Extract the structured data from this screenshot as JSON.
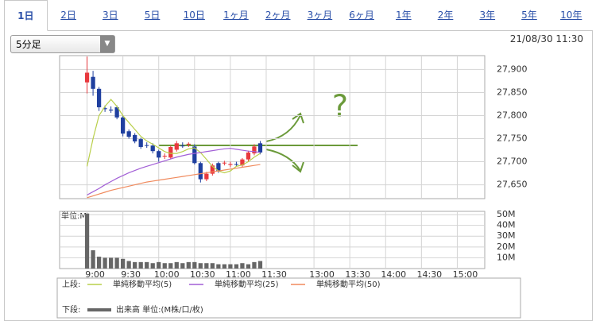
{
  "tabs": [
    "1日",
    "2日",
    "3日",
    "5日",
    "10日",
    "1ヶ月",
    "2ヶ月",
    "3ヶ月",
    "6ヶ月",
    "1年",
    "2年",
    "3年",
    "5年",
    "10年"
  ],
  "period_select": "5分足",
  "timestamp": "21/08/30 11:30",
  "annotation": "?",
  "legend": {
    "upper_label": "上段:",
    "lower_label": "下段:",
    "lower_entry": "出来高 単位:(M株/口/枚)"
  },
  "chart_data": [
    {
      "type": "candlestick",
      "x": [
        "9:00",
        "9:05",
        "9:10",
        "9:15",
        "9:20",
        "9:25",
        "9:30",
        "9:35",
        "9:40",
        "9:45",
        "9:50",
        "9:55",
        "10:00",
        "10:05",
        "10:10",
        "10:15",
        "10:20",
        "10:25",
        "10:30",
        "10:35",
        "10:40",
        "10:45",
        "10:50",
        "10:55",
        "11:00",
        "11:05",
        "11:10",
        "11:15",
        "11:20",
        "11:25"
      ],
      "open": [
        27872,
        27884,
        27858,
        27816,
        27813,
        27818,
        27796,
        27766,
        27758,
        27749,
        27736,
        27735,
        27723,
        27712,
        27709,
        27726,
        27735,
        27737,
        27733,
        27697,
        27662,
        27674,
        27697,
        27697,
        27693,
        27695,
        27692,
        27705,
        27718,
        27740
      ],
      "high": [
        27928,
        27897,
        27862,
        27822,
        27820,
        27822,
        27800,
        27770,
        27762,
        27752,
        27742,
        27740,
        27726,
        27718,
        27735,
        27745,
        27742,
        27742,
        27738,
        27700,
        27678,
        27696,
        27700,
        27702,
        27700,
        27700,
        27708,
        27724,
        27738,
        27745
      ],
      "low": [
        27848,
        27843,
        27810,
        27808,
        27806,
        27792,
        27755,
        27750,
        27740,
        27728,
        27730,
        27718,
        27700,
        27706,
        27705,
        27722,
        27730,
        27732,
        27694,
        27655,
        27658,
        27670,
        27676,
        27692,
        27688,
        27690,
        27688,
        27700,
        27714,
        27716
      ],
      "close": [
        27893,
        27858,
        27818,
        27814,
        27811,
        27796,
        27761,
        27754,
        27744,
        27732,
        27735,
        27723,
        27709,
        27713,
        27732,
        27740,
        27734,
        27739,
        27697,
        27662,
        27674,
        27692,
        27680,
        27698,
        27695,
        27694,
        27705,
        27720,
        27733,
        27720
      ],
      "up_color": "#e8383d",
      "down_color": "#1f3f9f",
      "series": [
        {
          "name": "単純移動平均(5)",
          "color": "#b9cf4a",
          "values": [
            27690,
            27750,
            27800,
            27820,
            27835,
            27820,
            27800,
            27785,
            27770,
            27755,
            27745,
            27738,
            27730,
            27722,
            27718,
            27718,
            27722,
            27728,
            27730,
            27720,
            27705,
            27690,
            27680,
            27676,
            27680,
            27690,
            27693,
            27700,
            27710,
            27718
          ]
        },
        {
          "name": "単純移動平均(25)",
          "color": "#a25fd6",
          "values": [
            27628,
            27635,
            27642,
            27650,
            27657,
            27664,
            27670,
            27676,
            27681,
            27686,
            27690,
            27694,
            27698,
            27702,
            27706,
            27710,
            27713,
            27716,
            27718,
            27720,
            27722,
            27724,
            27726,
            27728,
            27729,
            27727,
            27725,
            27723,
            27722,
            27720
          ]
        },
        {
          "name": "単純移動平均(50)",
          "color": "#f08a5d",
          "values": [
            27622,
            27626,
            27630,
            27634,
            27638,
            27641,
            27644,
            27647,
            27650,
            27653,
            27656,
            27658,
            27660,
            27662,
            27664,
            27666,
            27668,
            27670,
            27672,
            27674,
            27676,
            27678,
            27680,
            27682,
            27684,
            27686,
            27688,
            27690,
            27692,
            27694
          ]
        }
      ],
      "ylim": [
        27620,
        27930
      ],
      "yticks": [
        {
          "value": 27650,
          "label": "27,650"
        },
        {
          "value": 27700,
          "label": "27,700"
        },
        {
          "value": 27750,
          "label": "27,750"
        },
        {
          "value": 27800,
          "label": "27,800"
        },
        {
          "value": 27850,
          "label": "27,850"
        },
        {
          "value": 27900,
          "label": "27,900"
        }
      ],
      "grid": true
    },
    {
      "type": "bar",
      "y_label": "単位:M",
      "x": [
        "9:00",
        "9:05",
        "9:10",
        "9:15",
        "9:20",
        "9:25",
        "9:30",
        "9:35",
        "9:40",
        "9:45",
        "9:50",
        "9:55",
        "10:00",
        "10:05",
        "10:10",
        "10:15",
        "10:20",
        "10:25",
        "10:30",
        "10:35",
        "10:40",
        "10:45",
        "10:50",
        "10:55",
        "11:00",
        "11:05",
        "11:10",
        "11:15",
        "11:20",
        "11:25"
      ],
      "values": [
        51,
        17,
        11,
        10,
        10,
        10,
        9,
        7,
        6,
        6,
        6,
        5,
        6,
        5,
        5,
        6,
        5,
        6,
        6,
        5,
        5,
        5,
        4,
        4,
        4,
        4,
        5,
        4,
        6,
        7
      ],
      "color": "#666666",
      "xlim": [
        "8:37",
        "15:23"
      ],
      "xticks": [
        "9:00",
        "9:30",
        "10:00",
        "10:30",
        "11:00",
        "11:30",
        "13:00",
        "13:30",
        "14:00",
        "14:30",
        "15:00"
      ],
      "ylim": [
        0,
        53
      ],
      "yticks": [
        {
          "value": 10,
          "label": "10M"
        },
        {
          "value": 20,
          "label": "20M"
        },
        {
          "value": 30,
          "label": "30M"
        },
        {
          "value": 40,
          "label": "40M"
        },
        {
          "value": 50,
          "label": "50M"
        }
      ],
      "grid": true
    }
  ]
}
